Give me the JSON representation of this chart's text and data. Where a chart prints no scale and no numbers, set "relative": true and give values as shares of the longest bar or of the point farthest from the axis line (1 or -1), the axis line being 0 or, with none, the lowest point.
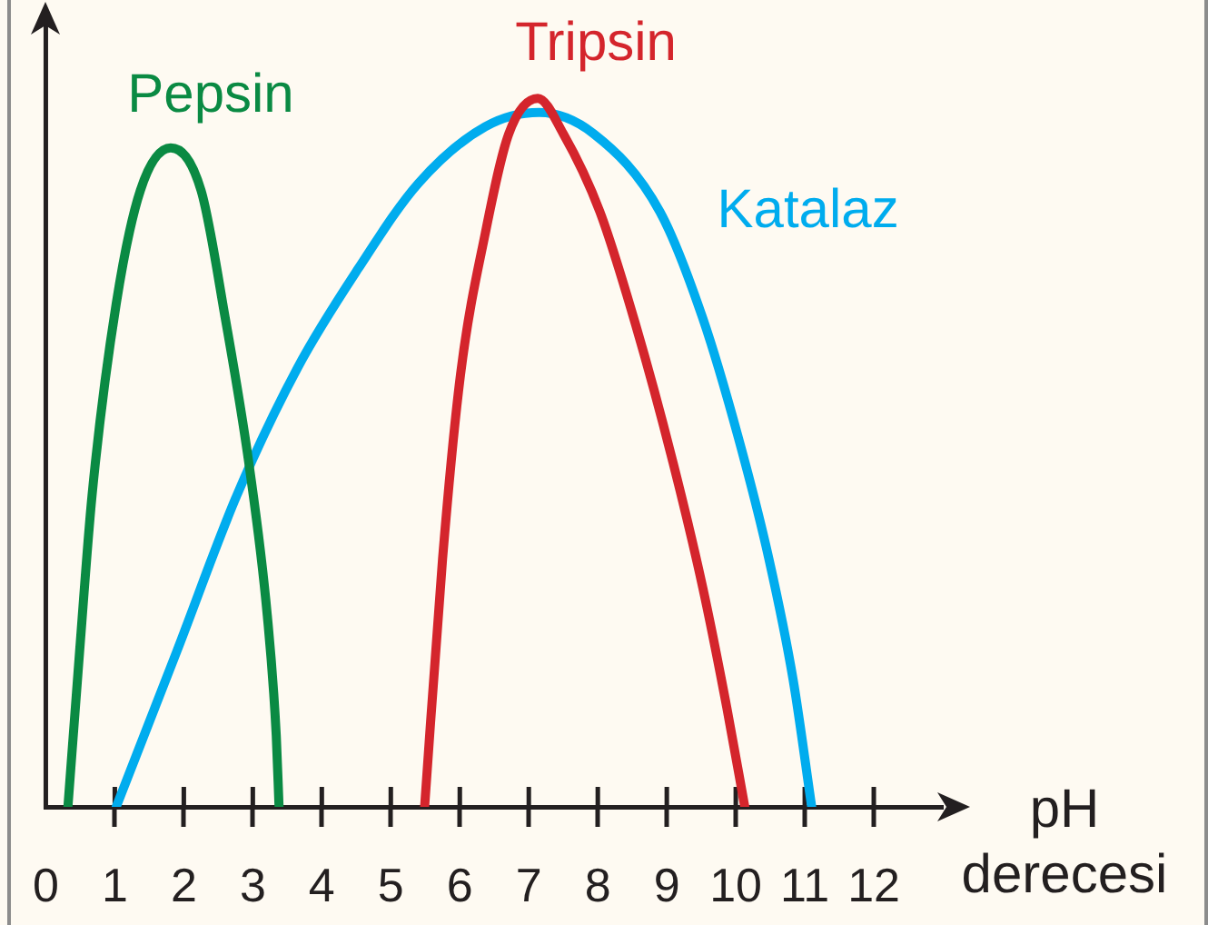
{
  "chart_data": {
    "type": "line",
    "xlabel": "pH derecesi",
    "relative": true,
    "xlim": [
      0,
      13
    ],
    "xticks": [
      0,
      1,
      2,
      3,
      4,
      5,
      6,
      7,
      8,
      9,
      10,
      11,
      12
    ],
    "series": [
      {
        "name": "Pepsin",
        "color": "#0a8a43",
        "x": [
          0.32,
          0.49,
          0.67,
          1.02,
          1.37,
          1.81,
          2.25,
          2.6,
          2.95,
          3.21,
          3.34,
          3.38
        ],
        "values": [
          0,
          0.22,
          0.44,
          0.71,
          0.87,
          0.93,
          0.87,
          0.69,
          0.48,
          0.27,
          0.1,
          0
        ]
      },
      {
        "name": "Tripsin",
        "color": "#d4252c",
        "x": [
          5.49,
          5.75,
          6.01,
          6.37,
          6.71,
          7.13,
          7.5,
          8.03,
          8.55,
          9.08,
          9.52,
          9.87,
          10.13
        ],
        "values": [
          0,
          0.35,
          0.61,
          0.81,
          0.95,
          1,
          0.95,
          0.84,
          0.68,
          0.49,
          0.31,
          0.14,
          0
        ]
      },
      {
        "name": "Katalaz",
        "color": "#00acee",
        "x": [
          1.02,
          1.9,
          2.77,
          3.65,
          4.53,
          5.4,
          6.37,
          7.15,
          7.94,
          8.9,
          9.52,
          10.04,
          10.48,
          10.83,
          11.1
        ],
        "values": [
          0,
          0.22,
          0.44,
          0.62,
          0.76,
          0.88,
          0.96,
          0.98,
          0.95,
          0.84,
          0.69,
          0.52,
          0.35,
          0.18,
          0
        ]
      }
    ]
  }
}
